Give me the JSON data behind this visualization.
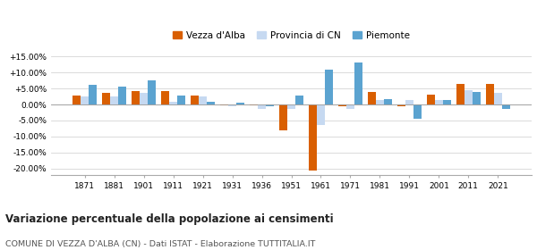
{
  "years": [
    1871,
    1881,
    1901,
    1911,
    1921,
    1931,
    1936,
    1951,
    1961,
    1971,
    1981,
    1991,
    2001,
    2011,
    2021
  ],
  "vezza": [
    2.8,
    3.7,
    4.2,
    4.2,
    2.8,
    -0.3,
    -0.3,
    -8.0,
    -20.5,
    -0.5,
    4.0,
    -0.5,
    3.0,
    6.5,
    6.5
  ],
  "provincia": [
    2.5,
    2.5,
    3.5,
    0.8,
    2.5,
    -0.5,
    -1.5,
    -1.5,
    -6.5,
    -1.5,
    1.5,
    1.5,
    1.5,
    4.5,
    3.5
  ],
  "piemonte": [
    6.0,
    5.5,
    7.5,
    2.8,
    0.8,
    0.5,
    -0.5,
    2.8,
    11.0,
    13.0,
    1.8,
    -4.5,
    1.5,
    4.0,
    -1.5
  ],
  "vezza_color": "#d95f02",
  "provincia_color": "#c6d9f1",
  "piemonte_color": "#5ba3d0",
  "title": "Variazione percentuale della popolazione ai censimenti",
  "subtitle": "COMUNE DI VEZZA D'ALBA (CN) - Dati ISTAT - Elaborazione TUTTITALIA.IT",
  "legend_labels": [
    "Vezza d'Alba",
    "Provincia di CN",
    "Piemonte"
  ],
  "ylim": [
    -22,
    17
  ],
  "yticks": [
    -20.0,
    -15.0,
    -10.0,
    -5.0,
    0.0,
    5.0,
    10.0,
    15.0
  ],
  "bar_width": 0.27,
  "background_color": "#ffffff",
  "grid_color": "#cccccc"
}
